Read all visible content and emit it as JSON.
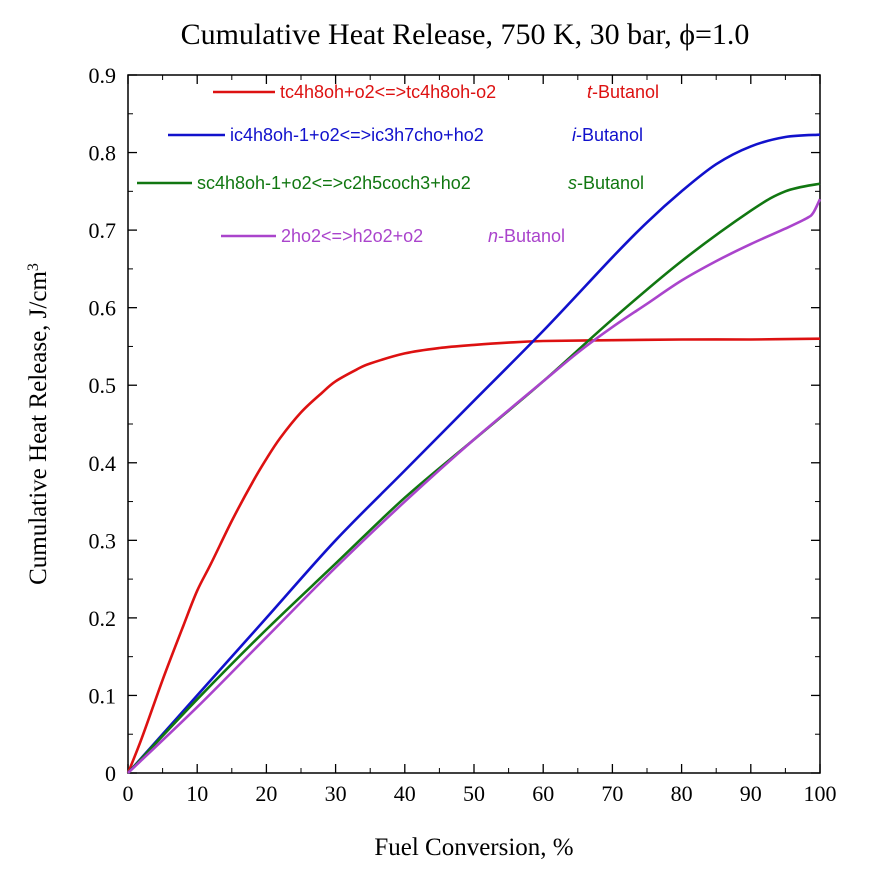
{
  "chart_data": {
    "type": "line",
    "title": "Cumulative Heat Release, 750 K, 30 bar, ϕ=1.0",
    "xlabel": "Fuel Conversion, %",
    "ylabel_main": "Cumulative Heat Release, J/cm",
    "ylabel_sup": "3",
    "xlim": [
      0,
      100
    ],
    "ylim": [
      0,
      0.9
    ],
    "xticks": [
      0,
      10,
      20,
      30,
      40,
      50,
      60,
      70,
      80,
      90,
      100
    ],
    "yticks": [
      0,
      0.1,
      0.2,
      0.3,
      0.4,
      0.5,
      0.6,
      0.7,
      0.8,
      0.9
    ],
    "ytick_labels": [
      "0",
      "0.1",
      "0.2",
      "0.3",
      "0.4",
      "0.5",
      "0.6",
      "0.7",
      "0.8",
      "0.9"
    ],
    "grid": false,
    "legend": "top-left",
    "series": [
      {
        "reaction": "tc4h8oh+o2<=>tc4h8oh-o2",
        "prefix": "t",
        "suffix": "-Butanol",
        "color": "#dd1111",
        "x": [
          0,
          2,
          5,
          8,
          10,
          12,
          15,
          18,
          20,
          22,
          25,
          28,
          30,
          33,
          35,
          40,
          45,
          50,
          55,
          60,
          70,
          80,
          90,
          100
        ],
        "y": [
          0,
          0.045,
          0.12,
          0.19,
          0.235,
          0.27,
          0.325,
          0.375,
          0.405,
          0.432,
          0.465,
          0.49,
          0.505,
          0.52,
          0.528,
          0.541,
          0.548,
          0.552,
          0.555,
          0.557,
          0.558,
          0.559,
          0.559,
          0.56
        ]
      },
      {
        "reaction": "ic4h8oh-1+o2<=>ic3h7cho+ho2",
        "prefix": "i",
        "suffix": "-Butanol",
        "color": "#1111cc",
        "x": [
          0,
          10,
          20,
          30,
          40,
          50,
          60,
          70,
          75,
          80,
          85,
          90,
          95,
          100
        ],
        "y": [
          0,
          0.1,
          0.2,
          0.3,
          0.39,
          0.48,
          0.57,
          0.665,
          0.71,
          0.75,
          0.785,
          0.808,
          0.82,
          0.823
        ]
      },
      {
        "reaction": "sc4h8oh-1+o2<=>c2h5coch3+ho2",
        "prefix": "s",
        "suffix": "-Butanol",
        "color": "#117711",
        "x": [
          0,
          10,
          20,
          30,
          40,
          50,
          60,
          70,
          80,
          90,
          95,
          100
        ],
        "y": [
          0,
          0.095,
          0.185,
          0.27,
          0.355,
          0.43,
          0.505,
          0.585,
          0.66,
          0.725,
          0.75,
          0.76
        ]
      },
      {
        "reaction": "2ho2<=>h2o2+o2",
        "prefix": "n",
        "suffix": "-Butanol",
        "color": "#aa44cc",
        "x": [
          0,
          10,
          20,
          30,
          40,
          50,
          60,
          65,
          70,
          75,
          80,
          85,
          90,
          95,
          98,
          99,
          100
        ],
        "y": [
          0,
          0.085,
          0.175,
          0.265,
          0.35,
          0.43,
          0.505,
          0.542,
          0.575,
          0.605,
          0.635,
          0.66,
          0.682,
          0.702,
          0.715,
          0.722,
          0.74
        ]
      }
    ]
  }
}
